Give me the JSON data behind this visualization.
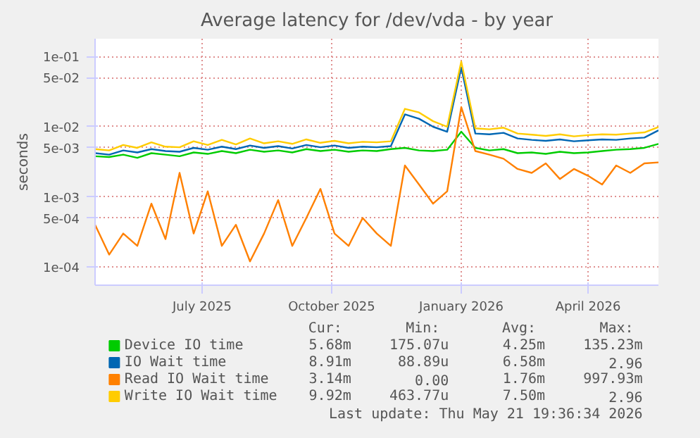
{
  "chart_data": {
    "type": "line",
    "title": "Average latency for /dev/vda - by year",
    "ylabel": "seconds",
    "x": [
      "2025-04-16",
      "2025-04-26",
      "2025-05-06",
      "2025-05-16",
      "2025-05-26",
      "2025-06-05",
      "2025-06-15",
      "2025-06-25",
      "2025-07-05",
      "2025-07-15",
      "2025-07-25",
      "2025-08-04",
      "2025-08-14",
      "2025-08-24",
      "2025-09-03",
      "2025-09-13",
      "2025-09-23",
      "2025-10-03",
      "2025-10-13",
      "2025-10-23",
      "2025-11-02",
      "2025-11-12",
      "2025-11-22",
      "2025-12-02",
      "2025-12-12",
      "2025-12-22",
      "2026-01-01",
      "2026-01-11",
      "2026-01-21",
      "2026-01-31",
      "2026-02-10",
      "2026-02-20",
      "2026-03-02",
      "2026-03-12",
      "2026-03-22",
      "2026-04-01",
      "2026-04-11",
      "2026-04-21",
      "2026-05-01",
      "2026-05-11",
      "2026-05-21"
    ],
    "series": [
      {
        "name": "Device IO time",
        "color": "#00cc00",
        "values": [
          0.0038,
          0.0037,
          0.004,
          0.0036,
          0.0042,
          0.004,
          0.0038,
          0.0043,
          0.0041,
          0.0045,
          0.0042,
          0.0047,
          0.0044,
          0.0046,
          0.0043,
          0.0048,
          0.0045,
          0.0047,
          0.0044,
          0.0046,
          0.0045,
          0.0048,
          0.005,
          0.0046,
          0.0045,
          0.0047,
          0.0085,
          0.005,
          0.0046,
          0.0048,
          0.0042,
          0.0043,
          0.0041,
          0.0044,
          0.0042,
          0.0043,
          0.0045,
          0.0047,
          0.0048,
          0.005,
          0.0057
        ]
      },
      {
        "name": "IO Wait time",
        "color": "#0066b3",
        "values": [
          0.0042,
          0.004,
          0.0046,
          0.0043,
          0.0048,
          0.0045,
          0.0044,
          0.005,
          0.0047,
          0.0052,
          0.0048,
          0.0054,
          0.005,
          0.0053,
          0.0049,
          0.0055,
          0.0051,
          0.0054,
          0.005,
          0.0052,
          0.0051,
          0.0053,
          0.015,
          0.013,
          0.01,
          0.0085,
          0.07,
          0.008,
          0.0078,
          0.0082,
          0.0068,
          0.0065,
          0.0063,
          0.0066,
          0.0062,
          0.0064,
          0.0066,
          0.0065,
          0.0068,
          0.007,
          0.0089
        ]
      },
      {
        "name": "Read IO Wait time",
        "color": "#ff8000",
        "values": [
          0.0004,
          0.00015,
          0.0003,
          0.0002,
          0.0008,
          0.00025,
          0.0022,
          0.0003,
          0.0012,
          0.0002,
          0.0004,
          0.00012,
          0.0003,
          0.0009,
          0.0002,
          0.0005,
          0.0013,
          0.0003,
          0.0002,
          0.0005,
          0.0003,
          0.0002,
          0.0028,
          0.0015,
          0.0008,
          0.0012,
          0.019,
          0.0045,
          0.004,
          0.0035,
          0.0025,
          0.0022,
          0.003,
          0.0018,
          0.0025,
          0.002,
          0.0015,
          0.0028,
          0.0022,
          0.003,
          0.0031
        ]
      },
      {
        "name": "Write IO Wait time",
        "color": "#ffcc00",
        "values": [
          0.0048,
          0.0046,
          0.0055,
          0.005,
          0.006,
          0.0052,
          0.0051,
          0.0062,
          0.0055,
          0.0065,
          0.0056,
          0.0068,
          0.0058,
          0.0062,
          0.0057,
          0.0066,
          0.0059,
          0.0063,
          0.0058,
          0.0061,
          0.006,
          0.0062,
          0.018,
          0.016,
          0.012,
          0.01,
          0.085,
          0.0095,
          0.0092,
          0.0097,
          0.008,
          0.0077,
          0.0074,
          0.0078,
          0.0073,
          0.0076,
          0.0078,
          0.0077,
          0.008,
          0.0083,
          0.0099
        ]
      }
    ],
    "xlim": [
      "2025-04-16",
      "2026-05-21"
    ],
    "xticks": [
      {
        "value": "2025-07-01",
        "label": "July 2025"
      },
      {
        "value": "2025-10-01",
        "label": "October 2025"
      },
      {
        "value": "2026-01-01",
        "label": "January 2026"
      },
      {
        "value": "2026-04-01",
        "label": "April 2026"
      }
    ],
    "ylim": [
      5.5e-05,
      0.18
    ],
    "yticks": [
      {
        "value": 0.0001,
        "label": "1e-04"
      },
      {
        "value": 0.0005,
        "label": "5e-04"
      },
      {
        "value": 0.001,
        "label": "1e-03"
      },
      {
        "value": 0.005,
        "label": "5e-03"
      },
      {
        "value": 0.01,
        "label": "1e-02"
      },
      {
        "value": 0.05,
        "label": "5e-02"
      },
      {
        "value": 0.1,
        "label": "1e-01"
      }
    ],
    "log": "y",
    "grid": true,
    "legend": "bottom",
    "marker": "none",
    "line_style": "solid",
    "annotations": [
      "Cur:",
      "Min:",
      "Avg:",
      "Max:",
      "5.68m",
      "175.07u",
      "4.25m",
      "135.23m",
      "8.91m",
      "88.89u",
      "6.58m",
      "2.96",
      "3.14m",
      "0.00",
      "1.76m",
      "997.93m",
      "9.92m",
      "463.77u",
      "7.50m",
      "2.96",
      "Last update: Thu May 21 19:36:34 2026"
    ]
  }
}
